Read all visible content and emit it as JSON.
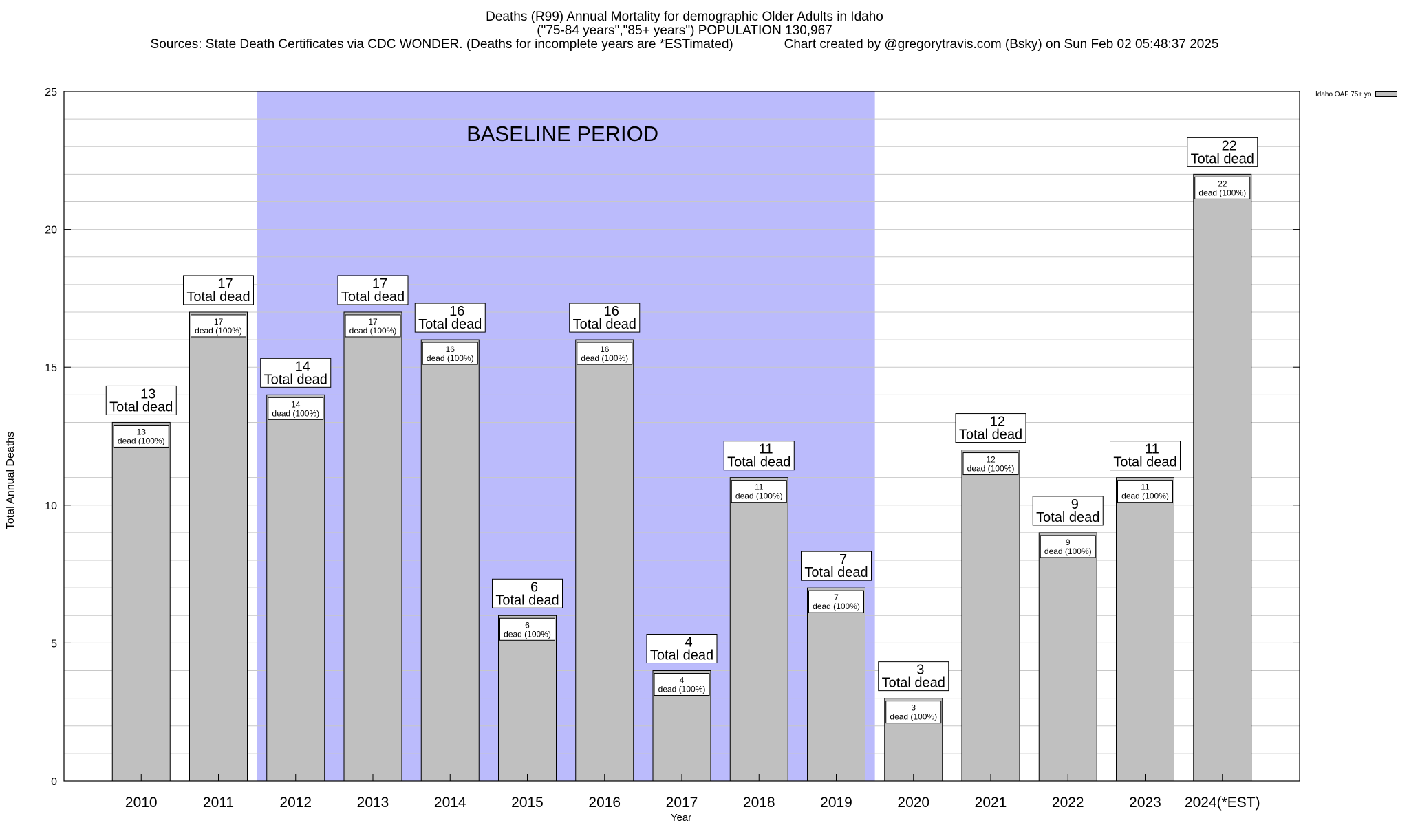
{
  "chart_data": {
    "type": "bar",
    "title_lines": [
      "Deaths (R99) Annual Mortality for demographic Older Adults in Idaho",
      "(\"75-84 years\",\"85+ years\") POPULATION 130,967",
      "Sources: State Death Certificates via CDC WONDER. (Deaths for incomplete years are *ESTimated)              Chart created by @gregorytravis.com (Bsky) on Sun Feb 02 05:48:37 2025"
    ],
    "xlabel": "Year",
    "ylabel": "Total Annual Deaths",
    "ylim": [
      0,
      25
    ],
    "yticks": [
      0,
      5,
      10,
      15,
      20,
      25
    ],
    "grid": true,
    "legend": {
      "label": "Idaho OAF 75+ yo",
      "placement": "top-right"
    },
    "categories": [
      "2010",
      "2011",
      "2012",
      "2013",
      "2014",
      "2015",
      "2016",
      "2017",
      "2018",
      "2019",
      "2020",
      "2021",
      "2022",
      "2023",
      "2024(*EST)"
    ],
    "series": [
      {
        "name": "Idaho OAF 75+ yo",
        "values": [
          13,
          17,
          14,
          17,
          16,
          6,
          16,
          4,
          11,
          7,
          3,
          12,
          9,
          11,
          22
        ]
      }
    ],
    "total_label_text": "Total dead",
    "inner_label_text": "dead (100%)",
    "baseline_period": {
      "label": "BASELINE PERIOD",
      "start": "2012",
      "end": "2019"
    },
    "colors": {
      "bar": "#c0c0c0",
      "baseline": "#bbbbfc",
      "grid": "#c8c8c8"
    }
  }
}
